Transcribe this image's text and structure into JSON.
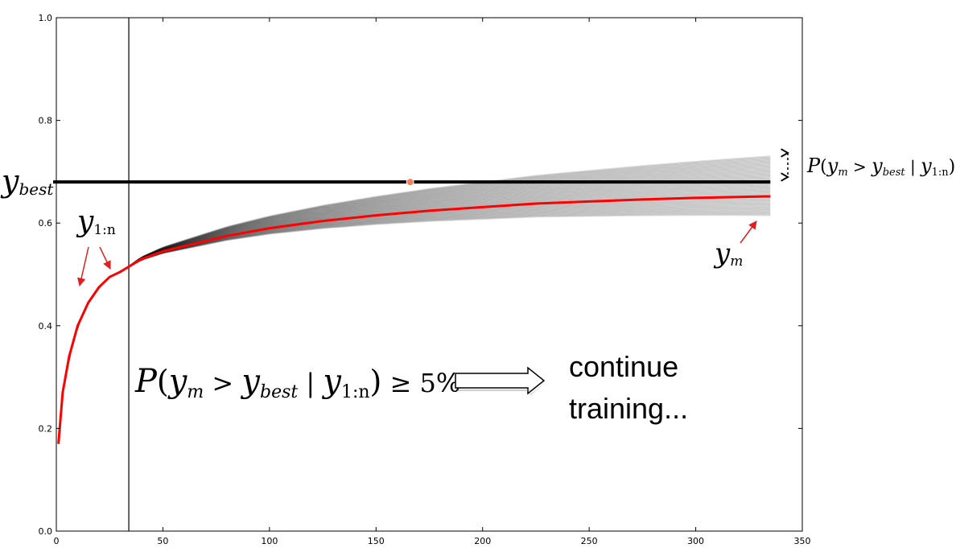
{
  "chart_data": {
    "type": "line",
    "xlim": [
      0,
      350
    ],
    "ylim": [
      0.0,
      1.0
    ],
    "x_ticks": [
      0,
      50,
      100,
      150,
      200,
      250,
      300,
      350
    ],
    "y_ticks": [
      0.0,
      0.2,
      0.4,
      0.6,
      0.8,
      1.0
    ],
    "grid": false,
    "y_best": 0.68,
    "y_best_point": [
      166,
      0.68
    ],
    "observed_until_x": 34,
    "predicted_end_x": 335,
    "mean_curve": {
      "x": [
        1,
        3,
        6,
        10,
        15,
        20,
        25,
        30,
        34,
        40,
        50,
        60,
        80,
        100,
        125,
        150,
        175,
        200,
        225,
        250,
        275,
        300,
        320,
        335
      ],
      "y": [
        0.17,
        0.27,
        0.34,
        0.4,
        0.445,
        0.475,
        0.495,
        0.505,
        0.515,
        0.53,
        0.545,
        0.555,
        0.575,
        0.59,
        0.604,
        0.615,
        0.624,
        0.631,
        0.638,
        0.642,
        0.646,
        0.649,
        0.651,
        0.652
      ]
    },
    "samples_end_range": [
      0.615,
      0.73
    ],
    "samples_count": 60,
    "colors": {
      "mean": "#ff0000",
      "samples": "#000000",
      "best_point": "#f08060",
      "annotation_arrow": "#e02020"
    }
  },
  "labels": {
    "y_best": {
      "main": "y",
      "sub": "best"
    },
    "y_1n": {
      "main": "y",
      "sub": "1:n"
    },
    "y_m": {
      "main": "y",
      "sub": "m"
    },
    "prob_right": {
      "p": "P",
      "open": "(",
      "y1": "y",
      "s1": "m",
      "gt": " > ",
      "y2": "y",
      "s2": "best",
      "bar": " | ",
      "y3": "y",
      "s3": "1:n",
      "close": ")"
    },
    "prob_main": {
      "p": "P",
      "open": "(",
      "y1": "y",
      "s1": "m",
      "gt": " > ",
      "y2": "y",
      "s2": "best",
      "bar": " | ",
      "y3": "y",
      "s3": "1:n",
      "close": ")",
      "geq": " ≥ 5%"
    },
    "continue_line1": "continue",
    "continue_line2": "training..."
  }
}
